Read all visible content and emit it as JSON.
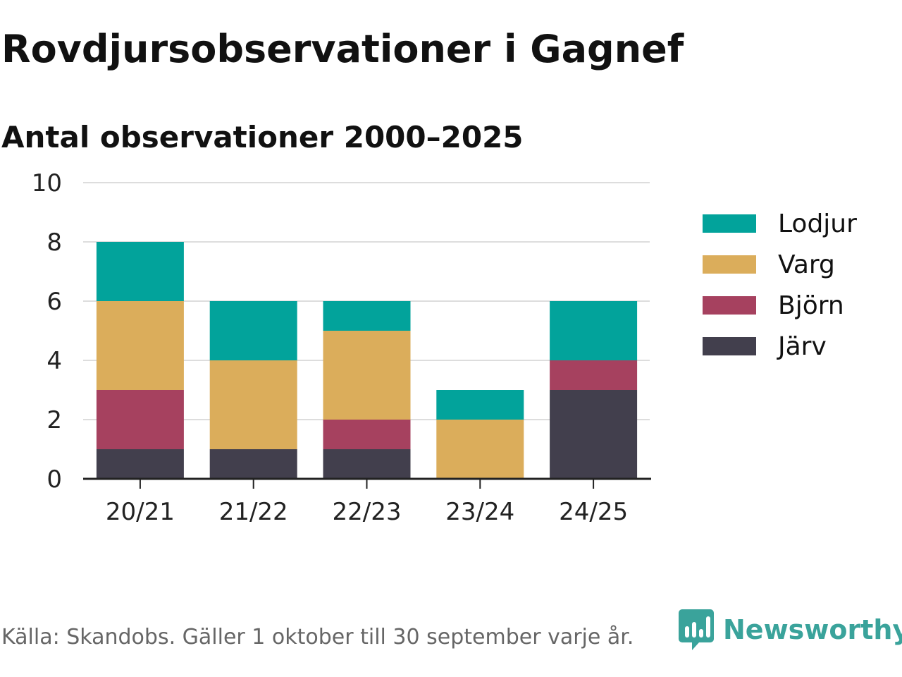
{
  "title": "Rovdjursobservationer i Gagnef",
  "subtitle": "Antal observationer 2000–2025",
  "source": "Källa: Skandobs. Gäller 1 oktober till 30 september varje år.",
  "brand": {
    "name": "Newsworthy",
    "icon": "newsworthy-logo-icon"
  },
  "colors": {
    "Lodjur": "#02a39b",
    "Varg": "#dbad5b",
    "Björn": "#a6415f",
    "Järv": "#423f4d",
    "grid": "#dddddd",
    "axis": "#222222",
    "brand": "#3aa39b"
  },
  "chart_data": {
    "type": "bar",
    "stacked": true,
    "title": "Rovdjursobservationer i Gagnef",
    "subtitle": "Antal observationer 2000–2025",
    "xlabel": "",
    "ylabel": "",
    "ylim": [
      0,
      10
    ],
    "yticks": [
      "0",
      "2",
      "4",
      "6",
      "8",
      "10"
    ],
    "grid": true,
    "legend_position": "right",
    "categories": [
      "20/21",
      "21/22",
      "22/23",
      "23/24",
      "24/25"
    ],
    "series": [
      {
        "name": "Järv",
        "values": [
          1,
          1,
          1,
          0,
          3
        ]
      },
      {
        "name": "Björn",
        "values": [
          2,
          0,
          1,
          0,
          1
        ]
      },
      {
        "name": "Varg",
        "values": [
          3,
          3,
          3,
          2,
          0
        ]
      },
      {
        "name": "Lodjur",
        "values": [
          2,
          2,
          1,
          1,
          2
        ]
      }
    ],
    "legend_order": [
      "Lodjur",
      "Varg",
      "Björn",
      "Järv"
    ]
  }
}
